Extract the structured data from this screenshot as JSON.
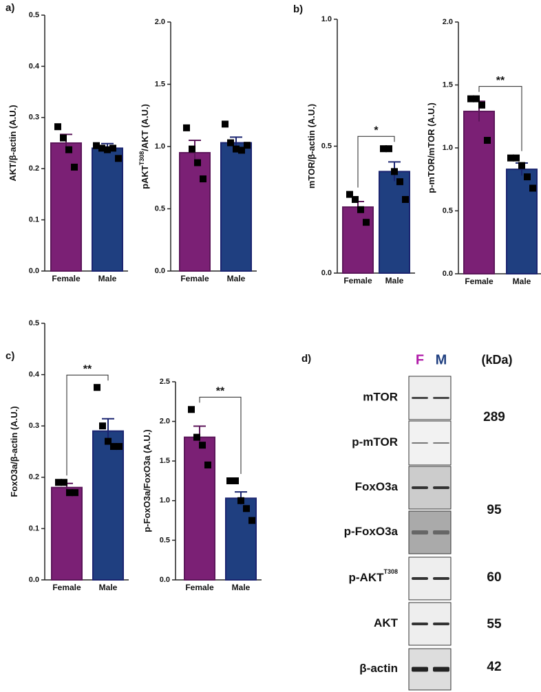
{
  "chart_data": [
    {
      "type": "bar",
      "panel": "a)",
      "ylabel": "AKT/β-actin (A.U.)",
      "categories": [
        "Female",
        "Male"
      ],
      "colors": [
        "#7b2075",
        "#1f3f80"
      ],
      "values": [
        0.25,
        0.24
      ],
      "errors": [
        0.017,
        0.009
      ],
      "points": [
        [
          0.282,
          0.26,
          0.237,
          0.203
        ],
        [
          0.245,
          0.24,
          0.237,
          0.24,
          0.22
        ]
      ],
      "ylim": [
        0,
        0.5
      ],
      "yticks": [
        {
          "value": 0,
          "label": "0.0"
        },
        0.1,
        0.2,
        0.3,
        0.4,
        0.5
      ]
    },
    {
      "type": "bar",
      "ylabel": "pAKT",
      "ylabel_sup": "T308",
      "ylabel_tail": "/AKT (A.U.)",
      "categories": [
        "Female",
        "Male"
      ],
      "colors": [
        "#7b2075",
        "#1f3f80"
      ],
      "values": [
        0.95,
        1.03
      ],
      "errors": [
        0.1,
        0.045
      ],
      "points": [
        [
          1.15,
          0.98,
          0.87,
          0.74
        ],
        [
          1.18,
          1.03,
          0.98,
          0.97,
          1.01
        ]
      ],
      "ylim": [
        0,
        2
      ],
      "yticks": [
        {
          "value": 0,
          "label": "0.0"
        },
        0.5,
        {
          "value": 1,
          "label": "1.0"
        },
        1.5,
        {
          "value": 2,
          "label": "2.0"
        }
      ]
    },
    {
      "type": "bar",
      "panel": "b)",
      "ylabel": "mTOR/β-actin (A.U.)",
      "categories": [
        "Female",
        "Male"
      ],
      "colors": [
        "#7b2075",
        "#1f3f80"
      ],
      "values": [
        0.26,
        0.4
      ],
      "errors": [
        0.022,
        0.038
      ],
      "points": [
        [
          0.31,
          0.29,
          0.25,
          0.2
        ],
        [
          0.49,
          0.49,
          0.4,
          0.36,
          0.29
        ]
      ],
      "significance": "*",
      "ylim": [
        0,
        1
      ],
      "yticks": [
        {
          "value": 0,
          "label": "0.0"
        },
        0.5,
        {
          "value": 1,
          "label": "1.0"
        }
      ]
    },
    {
      "type": "bar",
      "ylabel": "p-mTOR/mTOR (A.U.)",
      "categories": [
        "Female",
        "Male"
      ],
      "colors": [
        "#7b2075",
        "#1f3f80"
      ],
      "values": [
        1.29,
        0.83
      ],
      "errors": [
        0.08,
        0.05
      ],
      "points": [
        [
          1.39,
          1.39,
          1.34,
          1.06
        ],
        [
          0.92,
          0.92,
          0.86,
          0.77,
          0.68
        ]
      ],
      "significance": "**",
      "ylim": [
        0,
        2
      ],
      "yticks": [
        {
          "value": 0,
          "label": "0.0"
        },
        0.5,
        {
          "value": 1,
          "label": "1.0"
        },
        1.5,
        {
          "value": 2,
          "label": "2.0"
        }
      ]
    },
    {
      "type": "bar",
      "panel": "c)",
      "ylabel": "FoxO3a/β-actin (A.U.)",
      "categories": [
        "Female",
        "Male"
      ],
      "colors": [
        "#7b2075",
        "#1f3f80"
      ],
      "values": [
        0.18,
        0.29
      ],
      "errors": [
        0.008,
        0.024
      ],
      "points": [
        [
          0.19,
          0.19,
          0.17,
          0.17
        ],
        [
          0.375,
          0.3,
          0.27,
          0.26,
          0.26
        ]
      ],
      "significance": "**",
      "ylim": [
        0,
        0.5
      ],
      "yticks": [
        {
          "value": 0,
          "label": "0.0"
        },
        0.1,
        0.2,
        0.3,
        0.4,
        0.5
      ]
    },
    {
      "type": "bar",
      "ylabel": "p-FoxO3a/FoxO3a (A.U.)",
      "categories": [
        "Female",
        "Male"
      ],
      "colors": [
        "#7b2075",
        "#1f3f80"
      ],
      "values": [
        1.8,
        1.03
      ],
      "errors": [
        0.14,
        0.08
      ],
      "points": [
        [
          2.15,
          1.8,
          1.7,
          1.45
        ],
        [
          1.25,
          1.25,
          1.0,
          0.9,
          0.75
        ]
      ],
      "significance": "**",
      "ylim": [
        0,
        2.5
      ],
      "yticks": [
        {
          "value": 0,
          "label": "0.0"
        },
        0.5,
        {
          "value": 1,
          "label": "1.0"
        },
        1.5,
        {
          "value": 2,
          "label": "2.0"
        },
        2.5
      ]
    }
  ],
  "blot": {
    "panel": "d)",
    "lanes": [
      {
        "label": "F",
        "color": "#b01aa8"
      },
      {
        "label": "M",
        "color": "#1f3f80"
      }
    ],
    "unit": "(kDa)",
    "rows": [
      {
        "label": "mTOR"
      },
      {
        "label": "p-mTOR"
      },
      {
        "label": "FoxO3a"
      },
      {
        "label": "p-FoxO3a"
      },
      {
        "label": "p-AKT",
        "sup": "T308"
      },
      {
        "label": "AKT"
      },
      {
        "label": "β-actin"
      }
    ],
    "weights": [
      289,
      95,
      60,
      55,
      42
    ]
  }
}
